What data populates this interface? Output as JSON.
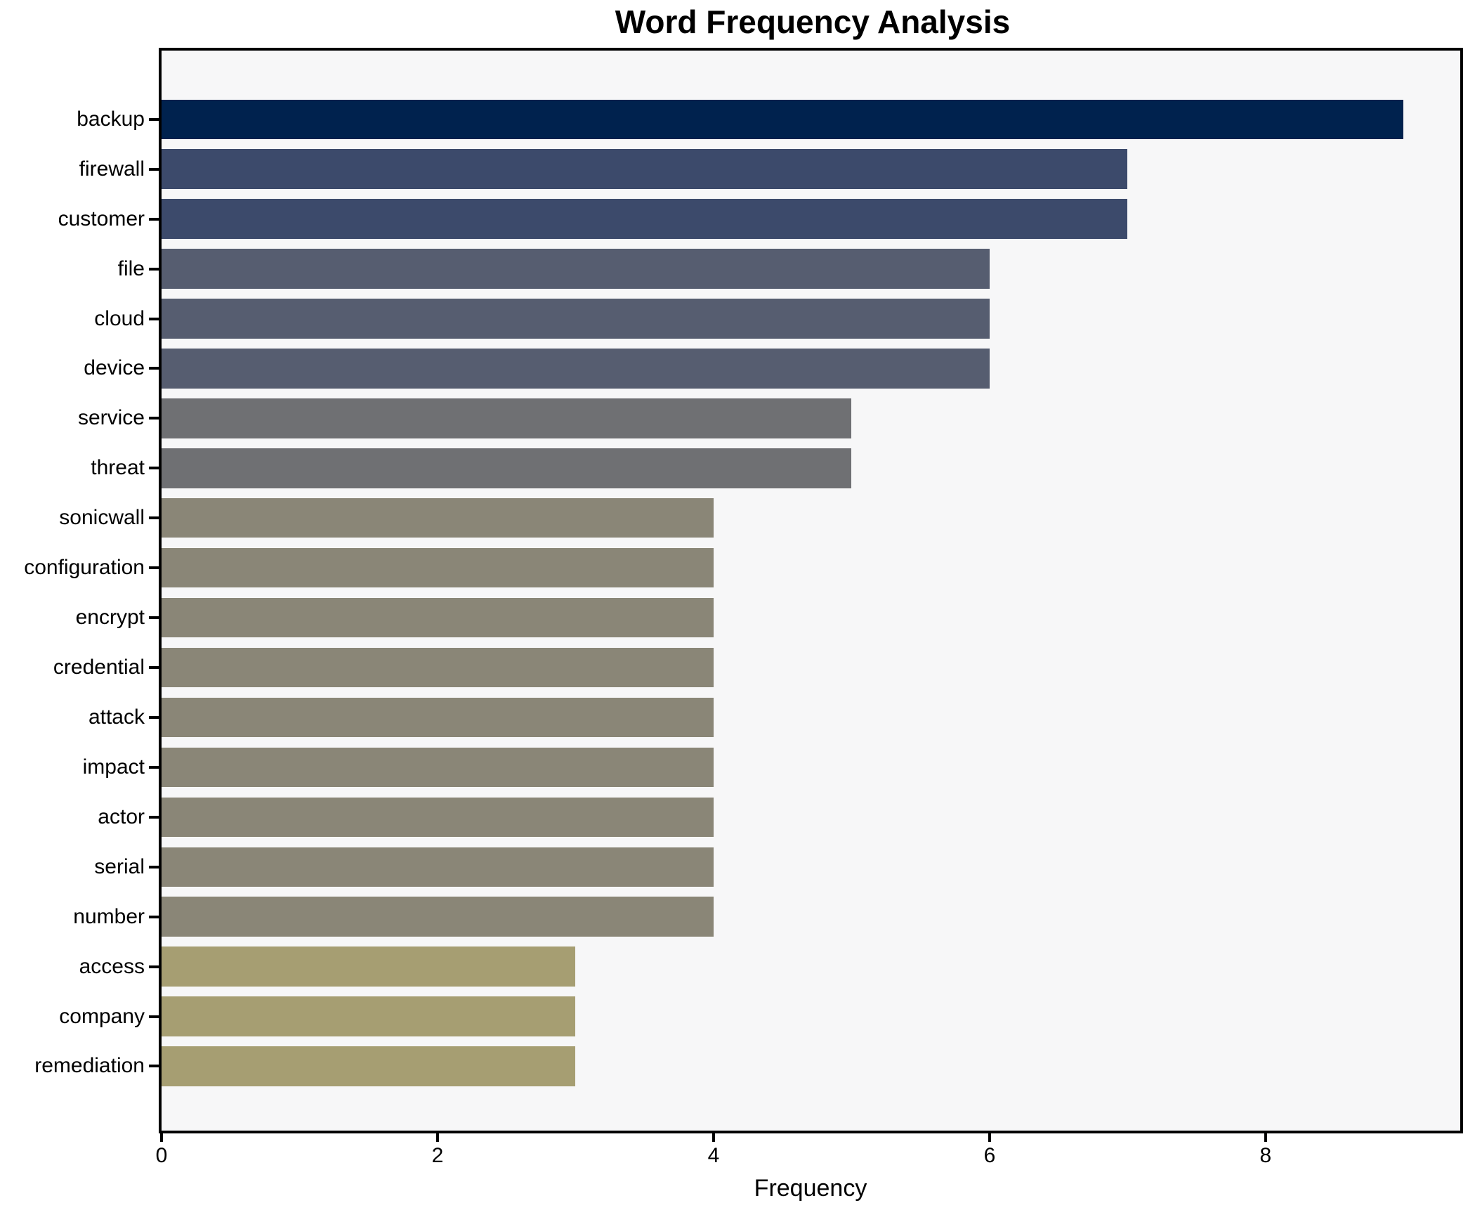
{
  "chart_data": {
    "type": "bar",
    "orientation": "horizontal",
    "title": "Word Frequency Analysis",
    "xlabel": "Frequency",
    "ylabel": "",
    "categories": [
      "backup",
      "firewall",
      "customer",
      "file",
      "cloud",
      "device",
      "service",
      "threat",
      "sonicwall",
      "configuration",
      "encrypt",
      "credential",
      "attack",
      "impact",
      "actor",
      "serial",
      "number",
      "access",
      "company",
      "remediation"
    ],
    "values": [
      9,
      7,
      7,
      6,
      6,
      6,
      5,
      5,
      4,
      4,
      4,
      4,
      4,
      4,
      4,
      4,
      4,
      3,
      3,
      3
    ],
    "bar_colors": [
      "#00224e",
      "#3c4a6b",
      "#3c4a6b",
      "#565d70",
      "#565d70",
      "#565d70",
      "#6f7073",
      "#6f7073",
      "#8a8677",
      "#8a8677",
      "#8a8677",
      "#8a8677",
      "#8a8677",
      "#8a8677",
      "#8a8677",
      "#8a8677",
      "#8a8677",
      "#a69e72",
      "#a69e72",
      "#a69e72"
    ],
    "xlim": [
      0,
      9.41
    ],
    "xticks": [
      0,
      2,
      4,
      6,
      8
    ],
    "grid": false,
    "legend": null,
    "plot_background": "#f7f7f8",
    "figure_background": "#ffffff",
    "spine_color": "#000000",
    "colormap": "cividis"
  }
}
